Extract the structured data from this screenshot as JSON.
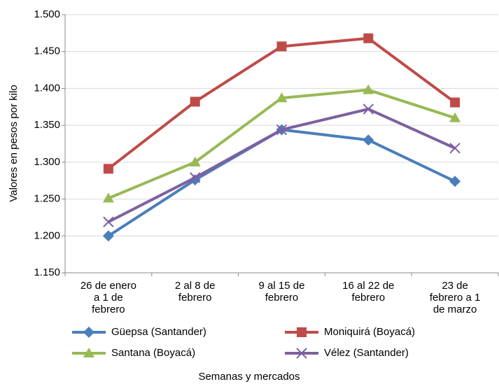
{
  "chart_data": {
    "type": "line",
    "categories": [
      "26 de enero\na 1 de\nfebrero",
      "2 al 8 de\nfebrero",
      "9 al 15 de\nfebrero",
      "16 al 22 de\nfebrero",
      "23 de\nfebrero a 1\nde marzo"
    ],
    "series": [
      {
        "name": "Güepsa (Santander)",
        "color": "#4a7ebb",
        "marker": "diamond",
        "values": [
          1200,
          1276,
          1344,
          1330,
          1274
        ]
      },
      {
        "name": "Moniquirá (Boyacá)",
        "color": "#be4b48",
        "marker": "square",
        "values": [
          1291,
          1382,
          1457,
          1468,
          1381
        ]
      },
      {
        "name": "Santana (Boyacá)",
        "color": "#98b954",
        "marker": "triangle",
        "values": [
          1251,
          1300,
          1387,
          1398,
          1360
        ]
      },
      {
        "name": "Vélez (Santander)",
        "color": "#7d60a0",
        "marker": "x",
        "values": [
          1219,
          1279,
          1344,
          1372,
          1319
        ]
      }
    ],
    "ylim": [
      1150,
      1500
    ],
    "yticks": [
      {
        "value": 1150,
        "label": "1.150"
      },
      {
        "value": 1200,
        "label": "1.200"
      },
      {
        "value": 1250,
        "label": "1.250"
      },
      {
        "value": 1300,
        "label": "1.300"
      },
      {
        "value": 1350,
        "label": "1.350"
      },
      {
        "value": 1400,
        "label": "1.400"
      },
      {
        "value": 1450,
        "label": "1.450"
      },
      {
        "value": 1500,
        "label": "1.500"
      }
    ],
    "ylabel": "Valores en pesos por kilo",
    "xlabel": "Semanas y mercados",
    "grid": true
  }
}
